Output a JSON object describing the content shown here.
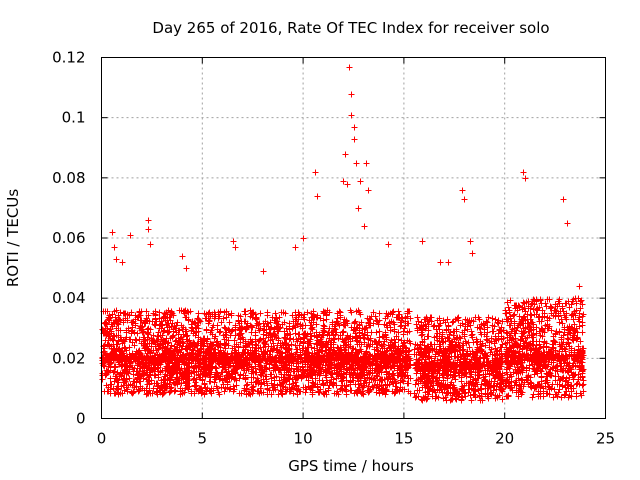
{
  "chart_data": {
    "type": "scatter",
    "title": "Day 265 of 2016, Rate Of TEC Index for receiver solo",
    "xlabel": "GPS time / hours",
    "ylabel": "ROTI / TECUs",
    "xlim": [
      0,
      25
    ],
    "ylim": [
      0,
      0.12
    ],
    "xticks": [
      0,
      5,
      10,
      15,
      20,
      25
    ],
    "xtick_labels": [
      "0",
      "5",
      "10",
      "15",
      "20",
      "25"
    ],
    "yticks": [
      0,
      0.02,
      0.04,
      0.06,
      0.08,
      0.1,
      0.12
    ],
    "ytick_labels": [
      "0",
      "0.02",
      "0.04",
      "0.06",
      "0.08",
      "0.1",
      "0.12"
    ],
    "grid": true,
    "marker": "plus",
    "color": "#ff0000",
    "series": [
      {
        "name": "ROTI",
        "x": [
          0.5,
          0.6,
          0.7,
          1.0,
          1.4,
          2.3,
          2.3,
          2.4,
          4.0,
          4.2,
          6.5,
          6.6,
          8.0,
          9.6,
          10.0,
          10.6,
          10.7,
          12.0,
          12.1,
          12.2,
          12.3,
          12.4,
          12.4,
          12.5,
          12.5,
          12.6,
          12.7,
          12.8,
          13.0,
          13.1,
          13.2,
          14.2,
          15.9,
          16.8,
          17.2,
          17.9,
          18.0,
          18.3,
          18.4,
          20.9,
          21.0,
          22.9,
          23.1,
          23.7
        ],
        "y": [
          0.062,
          0.057,
          0.053,
          0.052,
          0.061,
          0.066,
          0.063,
          0.058,
          0.054,
          0.05,
          0.059,
          0.057,
          0.049,
          0.057,
          0.06,
          0.082,
          0.074,
          0.079,
          0.088,
          0.078,
          0.117,
          0.108,
          0.101,
          0.097,
          0.093,
          0.085,
          0.07,
          0.079,
          0.064,
          0.085,
          0.076,
          0.058,
          0.059,
          0.052,
          0.052,
          0.076,
          0.073,
          0.059,
          0.055,
          0.082,
          0.08,
          0.073,
          0.065,
          0.044
        ]
      }
    ],
    "bands": [
      {
        "start": 0.0,
        "end": 15.3,
        "low": 0.008,
        "typical": 0.02,
        "high": 0.036
      },
      {
        "start": 15.5,
        "end": 19.9,
        "low": 0.006,
        "typical": 0.018,
        "high": 0.034
      },
      {
        "start": 20.0,
        "end": 23.9,
        "low": 0.007,
        "typical": 0.021,
        "high": 0.04
      }
    ]
  }
}
